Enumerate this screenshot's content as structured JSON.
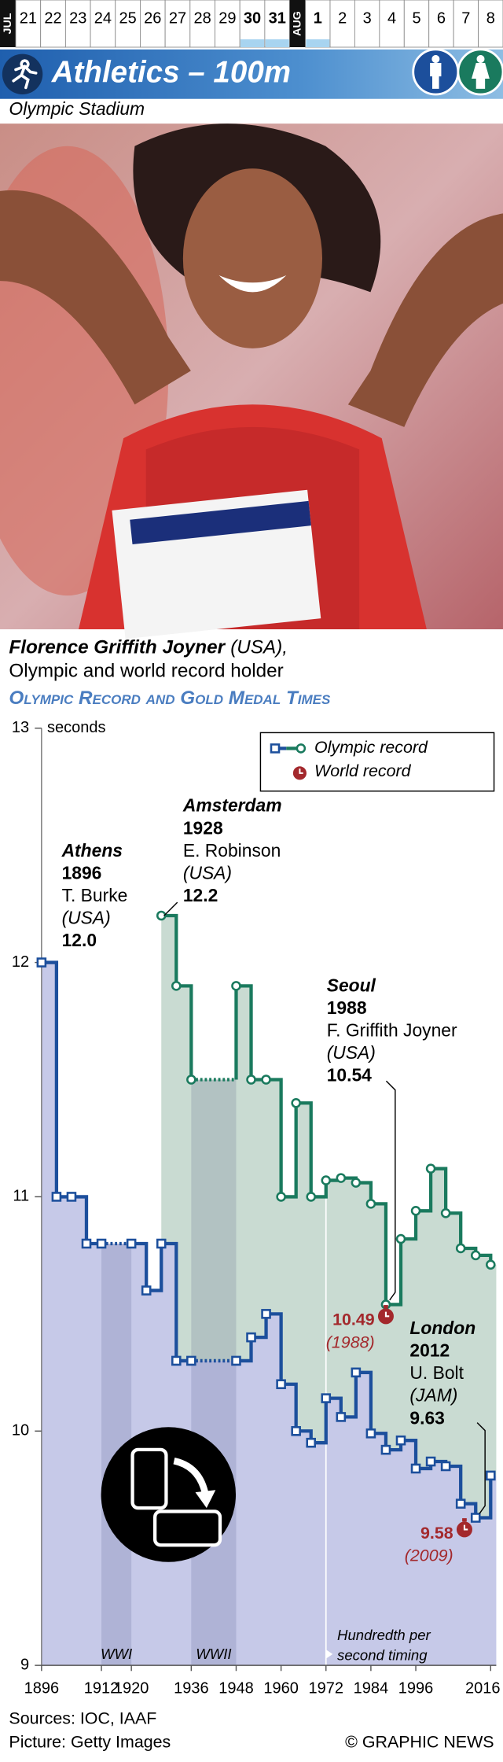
{
  "header": {
    "months": [
      "JUL",
      "AUG"
    ],
    "july": [
      {
        "label": "21"
      },
      {
        "label": "22"
      },
      {
        "label": "23"
      },
      {
        "label": "24"
      },
      {
        "label": "25"
      },
      {
        "label": "26"
      },
      {
        "label": "27"
      },
      {
        "label": "28"
      },
      {
        "label": "29"
      },
      {
        "label": "30",
        "bold": true
      },
      {
        "label": "31",
        "bold": true
      }
    ],
    "august": [
      {
        "label": "1",
        "bold": true
      },
      {
        "label": "2"
      },
      {
        "label": "3"
      },
      {
        "label": "4"
      },
      {
        "label": "5"
      },
      {
        "label": "6"
      },
      {
        "label": "7"
      },
      {
        "label": "8"
      }
    ],
    "title": "Athletics – 100m",
    "venue": "Olympic Stadium"
  },
  "caption": {
    "name": "Florence Griffith Joyner",
    "country": "(USA),",
    "text": "Olympic and world record holder"
  },
  "chart_data": {
    "type": "step",
    "title": "Olympic Record and Gold Medal Times",
    "y_label": "seconds",
    "xlim": [
      1896,
      2016
    ],
    "ylim": [
      9,
      13
    ],
    "yticks": [
      9,
      10,
      11,
      12,
      13
    ],
    "xticks": [
      1896,
      1912,
      1920,
      1936,
      1948,
      1960,
      1972,
      1984,
      1996,
      2016
    ],
    "grid": false,
    "legend": [
      "Olympic record",
      "World record"
    ],
    "series": [
      {
        "color": "#1c4f9c",
        "area_color": "#c6c9e8",
        "marker": "square",
        "x": [
          1896,
          1900,
          1904,
          1908,
          1912,
          1920,
          1924,
          1928,
          1932,
          1936,
          1948,
          1952,
          1956,
          1960,
          1964,
          1968,
          1972,
          1976,
          1980,
          1984,
          1988,
          1992,
          1996,
          2000,
          2004,
          2008,
          2012,
          2016
        ],
        "values": [
          12.0,
          11.0,
          11.0,
          10.8,
          10.8,
          10.8,
          10.6,
          10.8,
          10.3,
          10.3,
          10.3,
          10.4,
          10.5,
          10.2,
          10.0,
          9.95,
          10.14,
          10.06,
          10.25,
          9.99,
          9.92,
          9.96,
          9.84,
          9.87,
          9.85,
          9.69,
          9.63,
          9.81
        ]
      },
      {
        "color": "#1a7a5e",
        "area_color": "#c9dbd2",
        "marker": "circle",
        "x": [
          1928,
          1932,
          1936,
          1948,
          1952,
          1956,
          1960,
          1964,
          1968,
          1972,
          1976,
          1980,
          1984,
          1988,
          1992,
          1996,
          2000,
          2004,
          2008,
          2012,
          2016
        ],
        "values": [
          12.2,
          11.9,
          11.5,
          11.9,
          11.5,
          11.5,
          11.0,
          11.4,
          11.0,
          11.07,
          11.08,
          11.06,
          10.97,
          10.54,
          10.82,
          10.94,
          11.12,
          10.93,
          10.78,
          10.75,
          10.71
        ]
      }
    ],
    "world_records": [
      {
        "x": 1988,
        "value": 10.49,
        "year_label": "(1988)",
        "color": "#a3282c"
      },
      {
        "x": 2009,
        "value": 9.58,
        "year_label": "(2009)",
        "color": "#a3282c"
      }
    ],
    "bands": [
      {
        "label": "WWI",
        "from": 1912,
        "to": 1920
      },
      {
        "label": "WWII",
        "from": 1936,
        "to": 1948
      }
    ],
    "timing": {
      "x": 1972,
      "lines": [
        "Hundredth per",
        "second timing"
      ]
    },
    "callouts": [
      {
        "city": "Athens",
        "year": "1896",
        "athlete": "T. Burke",
        "country": "(USA)",
        "time": "12.0"
      },
      {
        "city": "Amsterdam",
        "year": "1928",
        "athlete": "E. Robinson",
        "country": "(USA)",
        "time": "12.2"
      },
      {
        "city": "Seoul",
        "year": "1988",
        "athlete": "F. Griffith Joyner",
        "country": "(USA)",
        "time": "10.54"
      },
      {
        "city": "London",
        "year": "2012",
        "athlete": "U. Bolt",
        "country": "(JAM)",
        "time": "9.63"
      }
    ]
  },
  "footer": {
    "sources": "Sources: IOC, IAAF",
    "picture": "Picture: Getty Images",
    "credit": "© GRAPHIC NEWS"
  }
}
